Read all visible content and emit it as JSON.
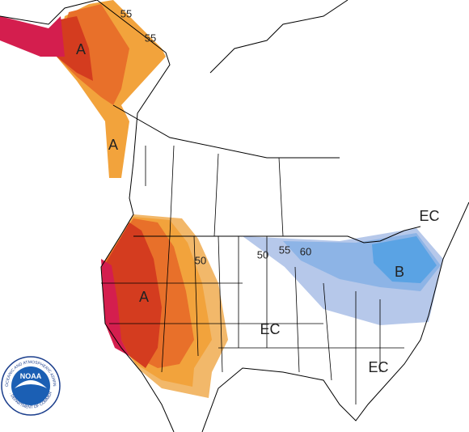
{
  "labels": [
    "55",
    "55",
    "A",
    "A",
    "50",
    "A",
    "50",
    "55",
    "60",
    "B",
    "EC",
    "EC",
    "EC"
  ],
  "logo": {
    "acronym": "NOAA",
    "ring_top": "NATIONAL OCEANIC AND ATMOSPHERIC ADMINISTRATION",
    "ring_bottom": "U.S. DEPARTMENT OF COMMERCE"
  }
}
